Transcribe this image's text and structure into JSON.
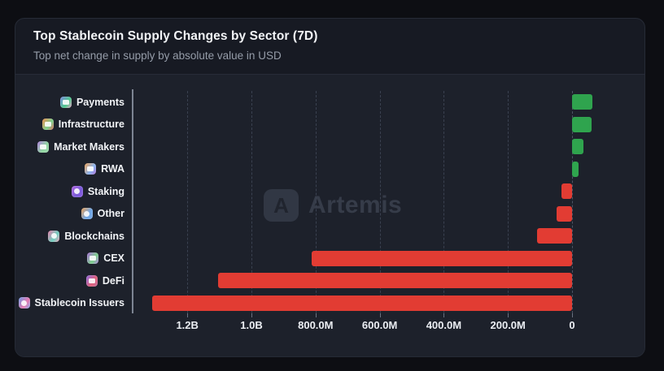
{
  "card": {
    "title": "Top Stablecoin Supply Changes by Sector (7D)",
    "subtitle": "Top net change in supply by absolute value in USD"
  },
  "watermark": {
    "logo_letter": "A",
    "text": "Artemis"
  },
  "chart_data": {
    "type": "bar",
    "orientation": "horizontal",
    "title": "Top Stablecoin Supply Changes by Sector (7D)",
    "subtitle": "Top net change in supply by absolute value in USD",
    "unit": "USD",
    "axis_note": "x-axis shows absolute value of net change, reversed (0 at right); green = positive supply change, red = negative",
    "categories": [
      "Payments",
      "Infrastructure",
      "Market Makers",
      "RWA",
      "Staking",
      "Other",
      "Blockchains",
      "CEX",
      "DeFi",
      "Stablecoin Issuers"
    ],
    "values_usd_m": [
      63,
      60,
      35,
      20,
      -33,
      -48,
      -110,
      -812,
      -1104,
      -1310
    ],
    "x_ticks": [
      "1.2B",
      "1.0B",
      "800.0M",
      "600.0M",
      "400.0M",
      "200.0M",
      "0"
    ],
    "x_tick_values_m": [
      1200,
      1000,
      800,
      600,
      400,
      200,
      0
    ],
    "xlim_m": [
      1370,
      -90
    ],
    "grid": "dashed-vertical",
    "legend": "none",
    "colors": {
      "positive": "#2fa44e",
      "negative": "#e23c33"
    },
    "icons": [
      {
        "name": "payments-icon",
        "shape": "rect",
        "g1": "#7b87e0",
        "g2": "#4fc98b",
        "g3": "#e9a0c8"
      },
      {
        "name": "infrastructure-icon",
        "shape": "rect",
        "g1": "#f08a4b",
        "g2": "#7cd08c",
        "g3": "#e06a5a"
      },
      {
        "name": "market-makers-icon",
        "shape": "rect",
        "g1": "#b07de0",
        "g2": "#8fd6a0",
        "g3": "#9fd6b0"
      },
      {
        "name": "rwa-icon",
        "shape": "rect",
        "g1": "#f0a050",
        "g2": "#8ab4f0",
        "g3": "#b070d8"
      },
      {
        "name": "staking-icon",
        "shape": "circle",
        "g1": "#b066e0",
        "g2": "#7a5cd8",
        "g3": "#8a5ce0"
      },
      {
        "name": "other-icon",
        "shape": "circle",
        "g1": "#f0a050",
        "g2": "#70a8e8",
        "g3": "#7aa8e0"
      },
      {
        "name": "blockchains-icon",
        "shape": "circle",
        "g1": "#e87aa8",
        "g2": "#6fd0c0",
        "g3": "#f0a0b8"
      },
      {
        "name": "cex-icon",
        "shape": "rect",
        "g1": "#a86ad8",
        "g2": "#7cd08c",
        "g3": "#b080e0"
      },
      {
        "name": "defi-icon",
        "shape": "rect",
        "g1": "#8a6ae0",
        "g2": "#e0607a",
        "g3": "#c06a9a"
      },
      {
        "name": "stablecoin-issuers-icon",
        "shape": "circle",
        "g1": "#6a9ae8",
        "g2": "#e87ab0",
        "g3": "#8ab0f0"
      }
    ]
  }
}
